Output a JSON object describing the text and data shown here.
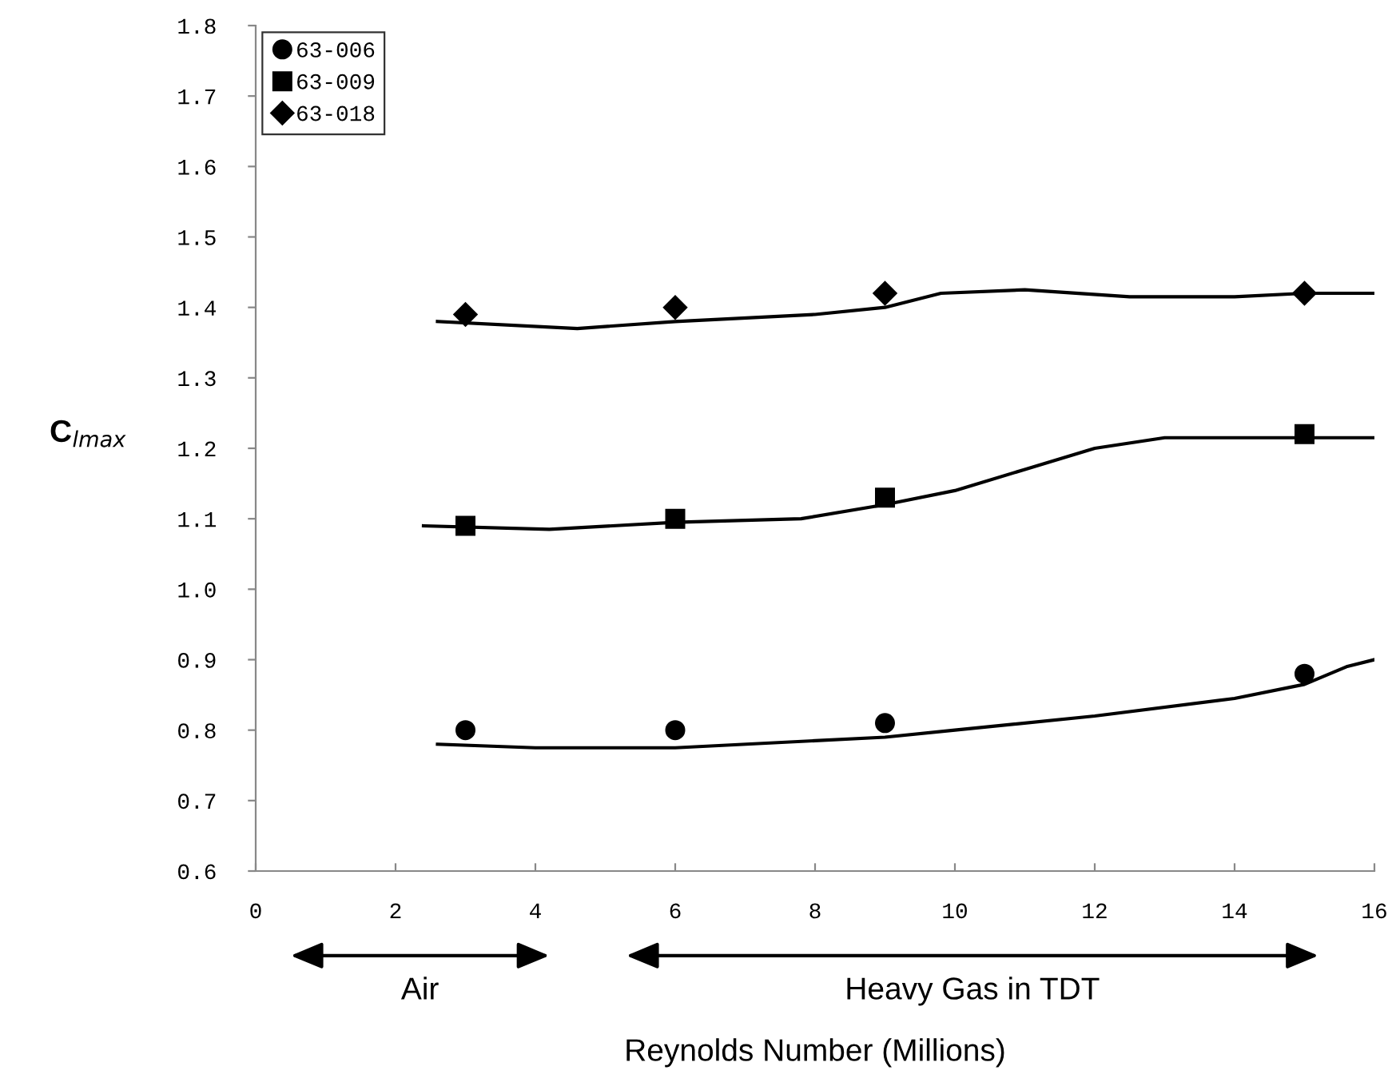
{
  "chart_data": {
    "type": "scatter",
    "xlabel": "Reynolds Number (Millions)",
    "ylabel": "C$_{lmax}$",
    "xlim": [
      0,
      16
    ],
    "xticks": [
      0,
      2,
      4,
      6,
      8,
      10,
      12,
      14,
      16
    ],
    "ylim": [
      0.6,
      1.8
    ],
    "yticks": [
      0.6,
      0.7,
      0.8,
      0.9,
      {
        "value": 1.0,
        "label": "1.0"
      },
      1.1,
      1.2,
      1.3,
      1.4,
      1.5,
      1.6,
      1.7,
      1.8
    ],
    "grid": false,
    "legend": "top left",
    "annotations": [
      "Air",
      "Heavy Gas in TDT"
    ],
    "series": [
      {
        "name": "63-006",
        "marker": "circle",
        "color": "#000000",
        "x": [
          3,
          6,
          9,
          15
        ],
        "values": [
          0.8,
          0.8,
          0.81,
          0.88
        ]
      },
      {
        "name": "63-009",
        "marker": "square",
        "color": "#000000",
        "x": [
          3,
          6,
          9,
          15
        ],
        "values": [
          1.09,
          1.1,
          1.13,
          1.22
        ]
      },
      {
        "name": "63-018",
        "marker": "diamond",
        "color": "#000000",
        "x": [
          3,
          6,
          9,
          15
        ],
        "values": [
          1.39,
          1.4,
          1.42,
          1.42
        ]
      },
      {
        "type": "line",
        "color": "#000000",
        "x": [
          2.6,
          4,
          6,
          8,
          9,
          10,
          12,
          14,
          15,
          15.6,
          16
        ],
        "values": [
          0.78,
          0.775,
          0.775,
          0.785,
          0.79,
          0.8,
          0.82,
          0.845,
          0.865,
          0.89,
          0.9
        ]
      },
      {
        "type": "line",
        "color": "#000000",
        "x": [
          2.4,
          4.2,
          6,
          7.8,
          9,
          10,
          11,
          12,
          13,
          15,
          16
        ],
        "values": [
          1.09,
          1.085,
          1.095,
          1.1,
          1.12,
          1.14,
          1.17,
          1.2,
          1.215,
          1.215,
          1.215
        ]
      },
      {
        "type": "line",
        "color": "#000000",
        "x": [
          2.6,
          4.6,
          6,
          8,
          9,
          9.8,
          11,
          12.5,
          14,
          15,
          16
        ],
        "values": [
          1.38,
          1.37,
          1.38,
          1.39,
          1.4,
          1.42,
          1.425,
          1.415,
          1.415,
          1.42,
          1.42
        ]
      }
    ]
  }
}
